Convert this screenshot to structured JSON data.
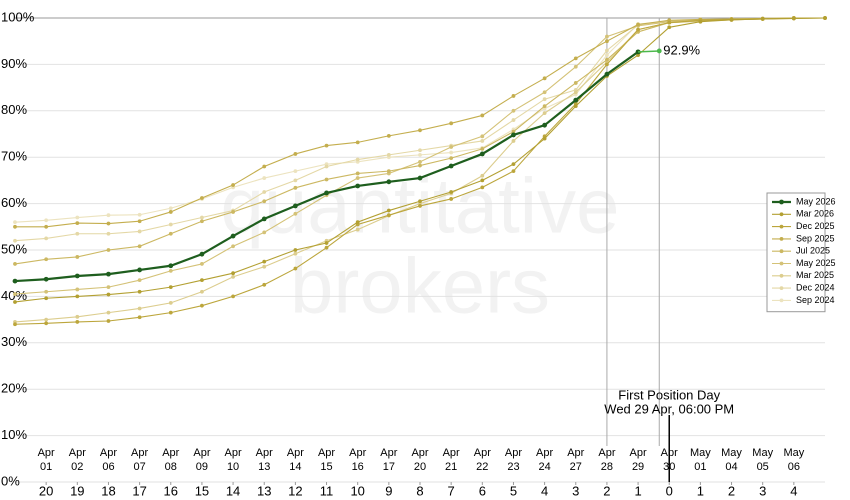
{
  "chart_data": {
    "type": "line",
    "watermark": [
      "quantitative",
      "brokers"
    ],
    "x": [
      -21,
      -20,
      -19,
      -18,
      -17,
      -16,
      -15,
      -14,
      -13,
      -12,
      -11,
      -10,
      -9,
      -8,
      -7,
      -6,
      -5,
      -4,
      -3,
      -2,
      -1,
      0,
      1,
      2,
      3,
      4,
      5
    ],
    "xlim": [
      -21,
      5
    ],
    "xticks": [
      {
        "value": -20,
        "label": "20"
      },
      {
        "value": -19,
        "label": "19"
      },
      {
        "value": -18,
        "label": "18"
      },
      {
        "value": -17,
        "label": "17"
      },
      {
        "value": -16,
        "label": "16"
      },
      {
        "value": -15,
        "label": "15"
      },
      {
        "value": -14,
        "label": "14"
      },
      {
        "value": -13,
        "label": "13"
      },
      {
        "value": -12,
        "label": "12"
      },
      {
        "value": -11,
        "label": "11"
      },
      {
        "value": -10,
        "label": "10"
      },
      {
        "value": -9,
        "label": "9"
      },
      {
        "value": -8,
        "label": "8"
      },
      {
        "value": -7,
        "label": "7"
      },
      {
        "value": -6,
        "label": "6"
      },
      {
        "value": -5,
        "label": "5"
      },
      {
        "value": -4,
        "label": "4"
      },
      {
        "value": -3,
        "label": "3"
      },
      {
        "value": -2,
        "label": "2"
      },
      {
        "value": -1,
        "label": "1"
      },
      0,
      1,
      2,
      3,
      4
    ],
    "xtick_dates": [
      {
        "month": "Apr",
        "day": "01"
      },
      {
        "month": "Apr",
        "day": "02"
      },
      {
        "month": "Apr",
        "day": "06"
      },
      {
        "month": "Apr",
        "day": "07"
      },
      {
        "month": "Apr",
        "day": "08"
      },
      {
        "month": "Apr",
        "day": "09"
      },
      {
        "month": "Apr",
        "day": "10"
      },
      {
        "month": "Apr",
        "day": "13"
      },
      {
        "month": "Apr",
        "day": "14"
      },
      {
        "month": "Apr",
        "day": "15"
      },
      {
        "month": "Apr",
        "day": "16"
      },
      {
        "month": "Apr",
        "day": "17"
      },
      {
        "month": "Apr",
        "day": "20"
      },
      {
        "month": "Apr",
        "day": "21"
      },
      {
        "month": "Apr",
        "day": "22"
      },
      {
        "month": "Apr",
        "day": "23"
      },
      {
        "month": "Apr",
        "day": "24"
      },
      {
        "month": "Apr",
        "day": "27"
      },
      {
        "month": "Apr",
        "day": "28"
      },
      {
        "month": "Apr",
        "day": "29"
      },
      {
        "month": "Apr",
        "day": "30"
      },
      {
        "month": "May",
        "day": "01"
      },
      {
        "month": "May",
        "day": "04"
      },
      {
        "month": "May",
        "day": "05"
      },
      {
        "month": "May",
        "day": "06"
      }
    ],
    "ylim": [
      0,
      100
    ],
    "yticks": [
      {
        "value": 0,
        "label": "0%"
      },
      {
        "value": 10,
        "label": "10%"
      },
      {
        "value": 20,
        "label": "20%"
      },
      {
        "value": 30,
        "label": "30%"
      },
      {
        "value": 40,
        "label": "40%"
      },
      {
        "value": 50,
        "label": "50%"
      },
      {
        "value": 60,
        "label": "60%"
      },
      {
        "value": 70,
        "label": "70%"
      },
      {
        "value": 80,
        "label": "80%"
      },
      {
        "value": 90,
        "label": "90%"
      },
      {
        "value": 100,
        "label": "100%"
      }
    ],
    "grid": true,
    "vlines": [
      -2
    ],
    "annotation": {
      "x": 0,
      "lines": [
        "First Position Day",
        "Wed 29 Apr, 06:00 PM"
      ]
    },
    "latest": {
      "x": -0.32,
      "value": 92.9,
      "label": "92.9%",
      "color": "#4cb84c"
    },
    "legend": "right",
    "series": [
      {
        "name": "May 2026",
        "color": "#1e5e1e",
        "values": [
          43.3,
          43.7,
          44.4,
          44.8,
          45.7,
          46.6,
          49.1,
          53.0,
          56.7,
          59.5,
          62.3,
          63.8,
          64.7,
          65.5,
          68.1,
          70.7,
          74.8,
          76.9,
          82.3,
          87.9,
          92.7,
          null,
          null,
          null,
          null,
          null,
          null
        ]
      },
      {
        "name": "Mar 2026",
        "color": "#b3a032",
        "values": [
          38.8,
          39.6,
          40,
          40.4,
          41,
          42,
          43.5,
          45,
          47.5,
          50,
          51.5,
          56,
          58.5,
          60.5,
          62.5,
          65,
          68.5,
          74,
          81,
          87.5,
          92,
          98,
          99.2,
          99.6,
          99.8,
          99.9,
          100
        ]
      },
      {
        "name": "Dec 2025",
        "color": "#bca63c",
        "values": [
          34,
          34.2,
          34.5,
          34.7,
          35.5,
          36.5,
          38,
          40,
          42.5,
          46,
          50.5,
          55.5,
          57.5,
          59.5,
          61,
          63.5,
          67,
          74.5,
          81.5,
          90,
          97.5,
          99,
          99.5,
          99.7,
          99.8,
          100,
          100
        ]
      },
      {
        "name": "Sep 2025",
        "color": "#c4ae4e",
        "values": [
          55,
          55,
          55.8,
          55.7,
          56.2,
          58.2,
          61.2,
          64,
          68,
          70.7,
          72.5,
          73.2,
          74.6,
          75.8,
          77.3,
          79,
          83.2,
          87,
          91.3,
          95,
          98.6,
          99.5,
          99.7,
          99.8,
          99.9,
          100,
          100
        ]
      },
      {
        "name": "Jul 2025",
        "color": "#ccb862",
        "values": [
          47,
          48,
          48.5,
          50,
          50.8,
          53.5,
          56.2,
          58.2,
          60.5,
          63.4,
          65.2,
          66.5,
          67,
          68.2,
          69.8,
          71.8,
          75.5,
          81,
          86,
          91,
          97,
          99,
          99.4,
          99.6,
          99.8,
          99.9,
          100
        ]
      },
      {
        "name": "May 2025",
        "color": "#d4c277",
        "values": [
          40.5,
          41,
          41.5,
          42,
          43.5,
          45.5,
          47,
          50.8,
          53.8,
          57.8,
          61.8,
          65.5,
          66.5,
          69,
          72.2,
          74.5,
          80,
          84,
          89.5,
          96,
          98.3,
          99.2,
          99.5,
          99.7,
          99.8,
          100,
          100
        ]
      },
      {
        "name": "Mar 2025",
        "color": "#dccd8e",
        "values": [
          34.5,
          35,
          35.6,
          36.5,
          37.4,
          38.6,
          41,
          44.2,
          46.4,
          49.2,
          52,
          54.4,
          57.4,
          60,
          62.2,
          66,
          73.5,
          79.5,
          84,
          90.5,
          97.5,
          99,
          99.3,
          99.6,
          99.8,
          100,
          100
        ]
      },
      {
        "name": "Dec 2024",
        "color": "#e4d8a6",
        "values": [
          52,
          52.5,
          53.5,
          53.5,
          54,
          55.5,
          57,
          58.5,
          62.5,
          65,
          68,
          69.5,
          70.5,
          71.5,
          72.5,
          73.5,
          78,
          82.5,
          84.5,
          93,
          98.5,
          99.3,
          99.6,
          99.7,
          99.8,
          100,
          100
        ]
      },
      {
        "name": "Sep 2024",
        "color": "#ece3bf",
        "values": [
          56,
          56.4,
          57,
          57.5,
          57.6,
          59,
          61,
          63.5,
          65.5,
          67,
          68.5,
          69,
          70,
          70.5,
          71,
          72,
          76,
          80.5,
          83.5,
          92,
          98.7,
          99.3,
          99.6,
          99.8,
          99.9,
          100,
          100
        ]
      }
    ]
  }
}
